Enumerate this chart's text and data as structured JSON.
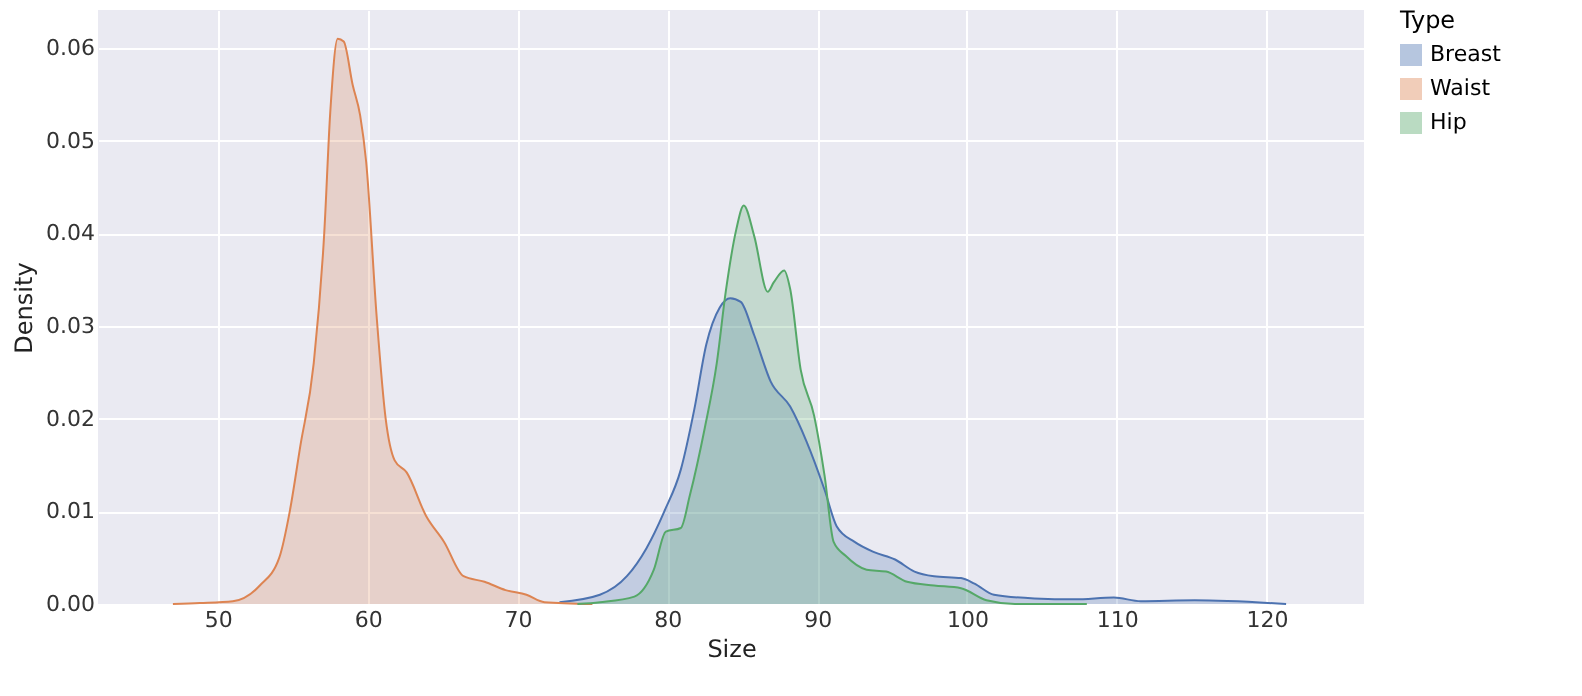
{
  "chart_data": {
    "type": "area",
    "xlabel": "Size",
    "ylabel": "Density",
    "legend_title": "Type",
    "legend": "right",
    "grid": true,
    "xlim": [
      42.0,
      126.5
    ],
    "xticks": [
      50,
      60,
      70,
      80,
      90,
      100,
      110,
      120
    ],
    "ylim": [
      0,
      0.0641
    ],
    "yticks": [
      {
        "value": 0,
        "label": "0.00"
      },
      {
        "value": 0.01,
        "label": "0.01"
      },
      {
        "value": 0.02,
        "label": "0.02"
      },
      {
        "value": 0.03,
        "label": "0.03"
      },
      {
        "value": 0.04,
        "label": "0.04"
      },
      {
        "value": 0.05,
        "label": "0.05"
      },
      {
        "value": 0.06,
        "label": "0.06"
      }
    ],
    "series": [
      {
        "name": "Breast",
        "color": "#4c72b0",
        "x": [
          72.8,
          75.5,
          77.3,
          78.6,
          79.8,
          80.9,
          81.8,
          82.6,
          83.5,
          84.2,
          84.9,
          85.8,
          86.9,
          88.2,
          89.3,
          90.5,
          91.3,
          92.5,
          93.8,
          95.2,
          96.5,
          97.8,
          99.6,
          100.5,
          101.8,
          104.5,
          107.2,
          109.8,
          111.6,
          115.2,
          121.3
        ],
        "values": [
          0.0002,
          0.001,
          0.003,
          0.006,
          0.01,
          0.0145,
          0.021,
          0.028,
          0.032,
          0.033,
          0.0326,
          0.029,
          0.024,
          0.0213,
          0.0175,
          0.0123,
          0.0084,
          0.0067,
          0.0056,
          0.0048,
          0.0035,
          0.003,
          0.0028,
          0.0022,
          0.001,
          0.0006,
          0.0005,
          0.0007,
          0.0003,
          0.0004,
          0
        ]
      },
      {
        "name": "Waist",
        "color": "#dd8452",
        "x": [
          47.0,
          48.8,
          51.0,
          52.8,
          54.1,
          54.8,
          55.5,
          56.4,
          57.1,
          57.5,
          58.0,
          58.4,
          59.0,
          59.5,
          59.9,
          60.6,
          61.2,
          61.8,
          62.6,
          63.9,
          65.1,
          66.4,
          67.8,
          69.2,
          70.6,
          71.8,
          75.0
        ],
        "values": [
          0,
          0.0001,
          0.0003,
          0.002,
          0.005,
          0.01,
          0.017,
          0.026,
          0.04,
          0.053,
          0.061,
          0.0607,
          0.056,
          0.0527,
          0.0477,
          0.031,
          0.02,
          0.0155,
          0.0142,
          0.0095,
          0.0067,
          0.003,
          0.0024,
          0.0015,
          0.001,
          0.0002,
          0
        ]
      },
      {
        "name": "Hip",
        "color": "#55a868",
        "x": [
          74.0,
          75.5,
          77.8,
          79.1,
          79.9,
          80.9,
          81.5,
          82.5,
          83.3,
          83.9,
          84.6,
          85.1,
          85.8,
          86.7,
          87.1,
          87.8,
          88.2,
          88.9,
          89.8,
          90.5,
          91.1,
          91.9,
          93.3,
          94.6,
          96.0,
          97.8,
          99.6,
          101.3,
          103.2,
          108.0
        ],
        "values": [
          0,
          0.0002,
          0.0008,
          0.0037,
          0.0078,
          0.0082,
          0.0117,
          0.019,
          0.026,
          0.0337,
          0.0404,
          0.043,
          0.0397,
          0.0337,
          0.0347,
          0.036,
          0.034,
          0.0253,
          0.0203,
          0.0138,
          0.0067,
          0.0052,
          0.0037,
          0.0035,
          0.0024,
          0.002,
          0.0017,
          0.0004,
          0,
          0
        ]
      }
    ]
  }
}
